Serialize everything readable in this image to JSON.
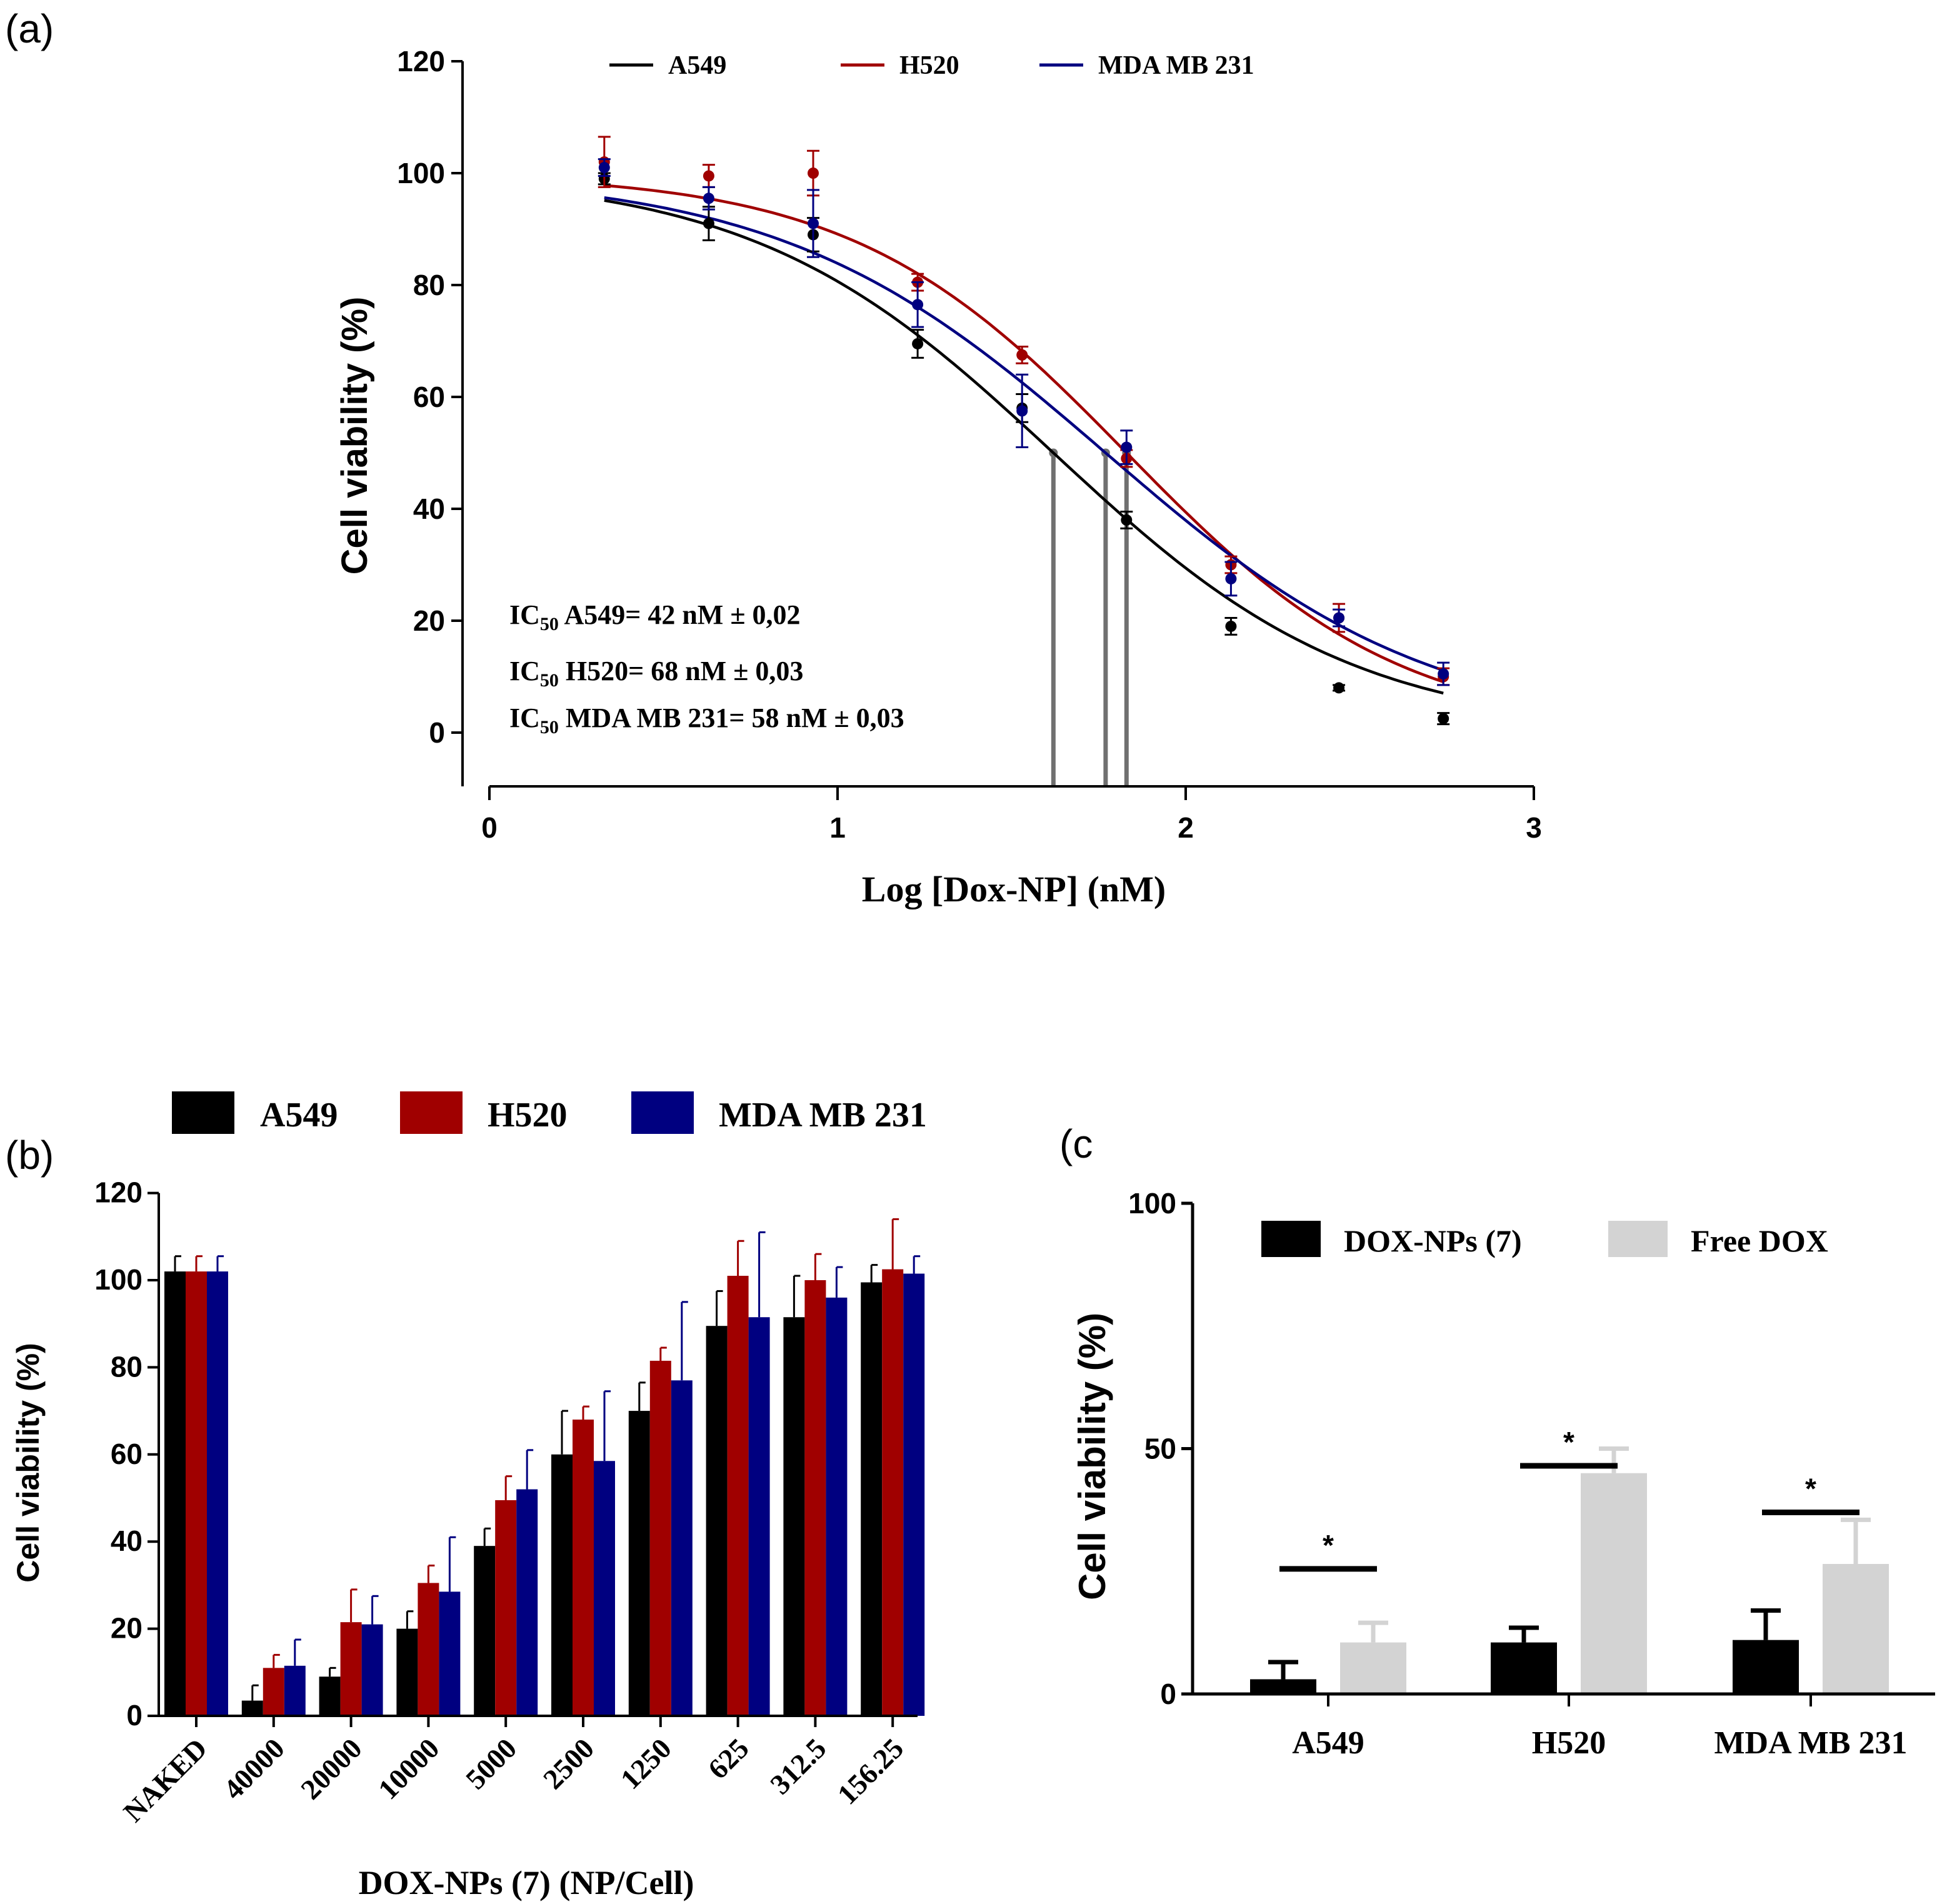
{
  "colors": {
    "A549": "#000000",
    "H520": "#a00000",
    "MDA MB 231": "#000080",
    "DOX-NPs (7)": "#000000",
    "Free DOX": "#d3d3d3",
    "ic50_line": "#707070"
  },
  "chart_data": [
    {
      "panel": "(a)",
      "type": "line",
      "title": "",
      "xlabel": "Log [Dox-NP] (nM)",
      "ylabel": "Cell viability (%)",
      "xlim": [
        0,
        3
      ],
      "ylim": [
        -10,
        120
      ],
      "xticks": [
        "0",
        "1",
        "2",
        "3"
      ],
      "yticks": [
        "0",
        "20",
        "40",
        "60",
        "80",
        "100",
        "120"
      ],
      "legend": [
        "A549",
        "H520",
        "MDA MB 231"
      ],
      "annotations": {
        "ic50_prefix": "IC",
        "ic50_sub": "50",
        "lines": [
          " A549= 42 nM ± 0,02",
          " H520= 68 nM ± 0,03",
          " MDA MB 231= 58 nM ± 0,03"
        ]
      },
      "ic50_log_x": [
        1.62,
        1.77,
        1.83
      ],
      "x": [
        0.33,
        0.63,
        0.93,
        1.23,
        1.53,
        1.83,
        2.13,
        2.44,
        2.74
      ],
      "series": [
        {
          "name": "A549",
          "values": [
            99,
            91,
            89,
            69.5,
            58,
            38,
            19,
            8,
            2.5
          ],
          "errors": [
            1,
            3,
            3,
            2.5,
            2.5,
            1.5,
            1.5,
            0.5,
            1
          ],
          "fit": {
            "top": 100,
            "bottom": 0,
            "logIC50": 1.62,
            "hill": 1.0
          }
        },
        {
          "name": "H520",
          "values": [
            102,
            99.5,
            100,
            80.5,
            67.5,
            49,
            30,
            20.5,
            10
          ],
          "errors": [
            4.5,
            2,
            4,
            1.5,
            1.5,
            1.5,
            1.5,
            2.5,
            1.5
          ],
          "fit": {
            "top": 100,
            "bottom": 0,
            "logIC50": 1.83,
            "hill": 1.1
          }
        },
        {
          "name": "MDA MB 231",
          "values": [
            101,
            95.5,
            91,
            76.5,
            57.5,
            51,
            27.5,
            20.5,
            10.5
          ],
          "errors": [
            1.5,
            2,
            6,
            4,
            6.5,
            3,
            3,
            1.5,
            2
          ],
          "fit": {
            "top": 100,
            "bottom": 0,
            "logIC50": 1.77,
            "hill": 0.93
          }
        }
      ]
    },
    {
      "panel": "(b)",
      "type": "bar",
      "xlabel": "DOX-NPs (7) (NP/Cell)",
      "ylabel": "Cell viability (%)",
      "ylim": [
        0,
        120
      ],
      "yticks": [
        "0",
        "20",
        "40",
        "60",
        "80",
        "100",
        "120"
      ],
      "categories": [
        "NAKED",
        "40000",
        "20000",
        "10000",
        "5000",
        "2500",
        "1250",
        "625",
        "312.5",
        "156.25"
      ],
      "legend": [
        "A549",
        "H520",
        "MDA MB 231"
      ],
      "series": [
        {
          "name": "A549",
          "values": [
            102,
            3.5,
            9,
            20,
            39,
            60,
            70,
            89.5,
            91.5,
            99.5
          ],
          "errors": [
            3.5,
            3.5,
            2,
            4,
            4,
            10,
            6.5,
            8,
            9.5,
            4
          ]
        },
        {
          "name": "H520",
          "values": [
            102,
            11,
            21.5,
            30.5,
            49.5,
            68,
            81.5,
            101,
            100,
            102.5
          ],
          "errors": [
            3.5,
            3,
            7.5,
            4,
            5.5,
            3,
            3,
            8,
            6,
            11.5
          ]
        },
        {
          "name": "MDA MB 231",
          "values": [
            102,
            11.5,
            21,
            28.5,
            52,
            58.5,
            77,
            91.5,
            96,
            101.5
          ],
          "errors": [
            3.5,
            6,
            6.5,
            12.5,
            9,
            16,
            18,
            19.5,
            7,
            4
          ]
        }
      ]
    },
    {
      "panel": "(c",
      "type": "bar",
      "xlabel": "",
      "ylabel": "Cell viability (%)",
      "ylim": [
        0,
        100
      ],
      "yticks": [
        "0",
        "50",
        "100"
      ],
      "categories": [
        "A549",
        "H520",
        "MDA MB 231"
      ],
      "legend": [
        "DOX-NPs (7)",
        "Free DOX"
      ],
      "series": [
        {
          "name": "DOX-NPs (7)",
          "values": [
            3,
            10.5,
            11
          ],
          "errors": [
            3.5,
            3,
            6
          ]
        },
        {
          "name": "Free DOX",
          "values": [
            10.5,
            45,
            26.5
          ],
          "errors": [
            4,
            5,
            9
          ]
        }
      ],
      "significance": [
        {
          "category": "A549",
          "label": "*",
          "y": 25.5
        },
        {
          "category": "H520",
          "label": "*",
          "y": 46.5
        },
        {
          "category": "MDA MB 231",
          "label": "*",
          "y": 37
        }
      ]
    }
  ]
}
